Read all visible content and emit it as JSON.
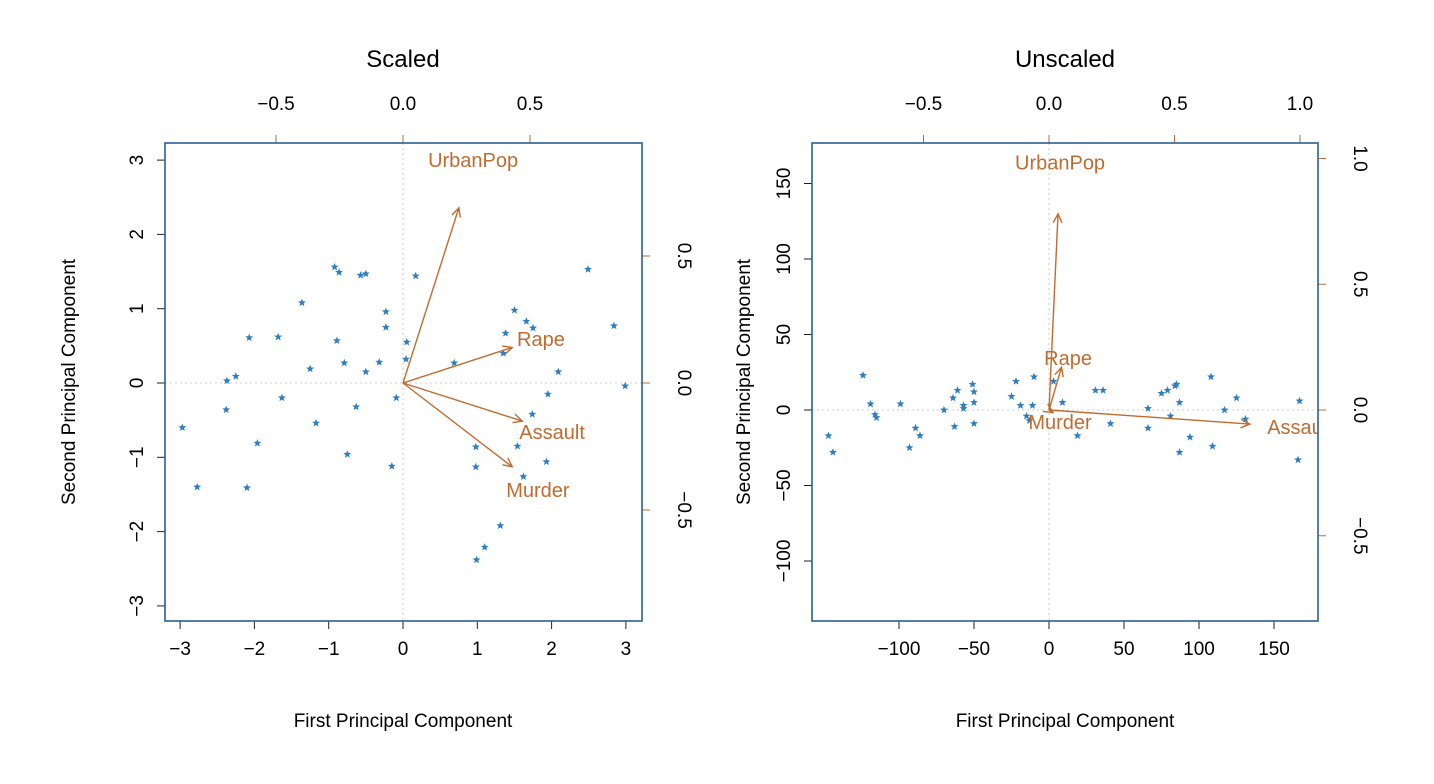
{
  "colors": {
    "points": "#2f7fc0",
    "loadings": "#c06c30",
    "frame": "#2a5f8f",
    "axis": "#222222",
    "refline": "#cccccc"
  },
  "chart_data": [
    {
      "type": "scatter",
      "subtype": "biplot",
      "title": "Scaled",
      "xlabel": "First Principal Component",
      "ylabel": "Second Principal Component",
      "xlim": [
        -3.2,
        3.2
      ],
      "ylim": [
        -3.2,
        3.2
      ],
      "xticks": [
        -3,
        -2,
        -1,
        0,
        1,
        2,
        3
      ],
      "yticks": [
        -3,
        -2,
        -1,
        0,
        1,
        2,
        3
      ],
      "xtick_labels": [
        "−3",
        "−2",
        "−1",
        "0",
        "1",
        "2",
        "3"
      ],
      "ytick_labels": [
        "−3",
        "−2",
        "−1",
        "0",
        "1",
        "2",
        "3"
      ],
      "top_ticks": [
        -0.5,
        0.0,
        0.5
      ],
      "top_tick_labels": [
        "−0.5",
        "0.0",
        "0.5"
      ],
      "right_ticks": [
        -0.5,
        0.0,
        0.5
      ],
      "right_tick_labels": [
        "−0.5",
        "0.0",
        "0.5"
      ],
      "loading_lim": [
        -0.94,
        0.94
      ],
      "marker": "*",
      "points": [
        [
          -2.97,
          -0.6
        ],
        [
          -2.77,
          -1.4
        ],
        [
          -2.38,
          -0.36
        ],
        [
          -2.37,
          0.03
        ],
        [
          -2.25,
          0.09
        ],
        [
          -2.07,
          0.61
        ],
        [
          -2.1,
          -1.41
        ],
        [
          -1.96,
          -0.81
        ],
        [
          -1.68,
          0.62
        ],
        [
          -1.63,
          -0.2
        ],
        [
          -1.36,
          1.08
        ],
        [
          -1.25,
          0.19
        ],
        [
          -1.17,
          -0.54
        ],
        [
          -0.92,
          1.56
        ],
        [
          -0.86,
          1.49
        ],
        [
          -0.89,
          0.57
        ],
        [
          -0.79,
          0.27
        ],
        [
          -0.75,
          -0.96
        ],
        [
          -0.57,
          1.45
        ],
        [
          -0.5,
          1.47
        ],
        [
          -0.5,
          0.15
        ],
        [
          -0.63,
          -0.32
        ],
        [
          -0.32,
          0.28
        ],
        [
          -0.23,
          0.96
        ],
        [
          -0.23,
          0.75
        ],
        [
          -0.15,
          -1.12
        ],
        [
          -0.09,
          -0.2
        ],
        [
          0.04,
          0.32
        ],
        [
          0.05,
          0.55
        ],
        [
          0.17,
          1.44
        ],
        [
          0.69,
          0.27
        ],
        [
          0.98,
          -0.86
        ],
        [
          0.98,
          -1.13
        ],
        [
          0.99,
          -2.38
        ],
        [
          1.1,
          -2.21
        ],
        [
          1.31,
          -1.92
        ],
        [
          1.35,
          0.4
        ],
        [
          1.38,
          0.67
        ],
        [
          1.5,
          0.98
        ],
        [
          1.54,
          -0.85
        ],
        [
          1.62,
          -1.26
        ],
        [
          1.66,
          0.83
        ],
        [
          1.75,
          0.74
        ],
        [
          1.74,
          -0.42
        ],
        [
          1.93,
          -1.06
        ],
        [
          1.95,
          -0.15
        ],
        [
          2.09,
          0.15
        ],
        [
          2.49,
          1.53
        ],
        [
          2.84,
          0.77
        ],
        [
          2.99,
          -0.04
        ]
      ],
      "loadings": [
        {
          "name": "UrbanPop",
          "x": 0.22,
          "y": 0.69,
          "label_x": 0.276,
          "label_y": 0.878
        },
        {
          "name": "Rape",
          "x": 0.43,
          "y": 0.14,
          "label_x": 0.543,
          "label_y": 0.173
        },
        {
          "name": "Assault",
          "x": 0.47,
          "y": -0.15,
          "label_x": 0.587,
          "label_y": -0.193
        },
        {
          "name": "Murder",
          "x": 0.43,
          "y": -0.33,
          "label_x": 0.531,
          "label_y": -0.421
        }
      ]
    },
    {
      "type": "scatter",
      "subtype": "biplot",
      "title": "Unscaled",
      "xlabel": "First Principal Component",
      "ylabel": "Second Principal Component",
      "xlim": [
        -158,
        179
      ],
      "ylim": [
        -139,
        179
      ],
      "xticks": [
        -100,
        -50,
        0,
        50,
        100,
        150
      ],
      "yticks": [
        -100,
        -50,
        0,
        50,
        100,
        150
      ],
      "xtick_labels": [
        "−100",
        "−50",
        "0",
        "50",
        "100",
        "150"
      ],
      "ytick_labels": [
        "−100",
        "−50",
        "0",
        "50",
        "100",
        "150"
      ],
      "top_ticks": [
        -0.5,
        0.0,
        0.5,
        1.0
      ],
      "top_tick_labels": [
        "−0.5",
        "0.0",
        "0.5",
        "1.0"
      ],
      "right_ticks": [
        -0.5,
        0.0,
        0.5,
        1.0
      ],
      "right_tick_labels": [
        "−0.5",
        "0.0",
        "0.5",
        "1.0"
      ],
      "marker": "*",
      "points": [
        [
          -147,
          -17
        ],
        [
          -144,
          -28
        ],
        [
          -124,
          23
        ],
        [
          -119,
          4
        ],
        [
          -116,
          -3
        ],
        [
          -115,
          -5
        ],
        [
          -99,
          4
        ],
        [
          -93,
          -25
        ],
        [
          -89,
          -12
        ],
        [
          -86,
          -17
        ],
        [
          -70,
          0
        ],
        [
          -64,
          8
        ],
        [
          -63,
          -11
        ],
        [
          -61,
          13
        ],
        [
          -57,
          1
        ],
        [
          -57,
          3
        ],
        [
          -50,
          -9
        ],
        [
          -50,
          5
        ],
        [
          -51,
          17
        ],
        [
          -50,
          12
        ],
        [
          -25,
          9
        ],
        [
          -22,
          19
        ],
        [
          -19,
          3
        ],
        [
          -15,
          -4
        ],
        [
          -13,
          -7
        ],
        [
          -11,
          3
        ],
        [
          -10,
          22
        ],
        [
          3,
          19
        ],
        [
          9,
          5
        ],
        [
          19,
          -17
        ],
        [
          31,
          13
        ],
        [
          36,
          13
        ],
        [
          41,
          -9
        ],
        [
          66,
          1
        ],
        [
          66,
          -12
        ],
        [
          79,
          13
        ],
        [
          81,
          -4
        ],
        [
          84,
          16
        ],
        [
          85,
          17
        ],
        [
          87,
          5
        ],
        [
          87,
          -28
        ],
        [
          94,
          -18
        ],
        [
          108,
          22
        ],
        [
          109,
          -24
        ],
        [
          117,
          0
        ],
        [
          125,
          8
        ],
        [
          131,
          -6
        ],
        [
          167,
          6
        ],
        [
          166,
          -33
        ],
        [
          75,
          11
        ]
      ],
      "loadings": [
        {
          "name": "UrbanPop",
          "x": 0.036,
          "y": 0.78,
          "label_x": 0.044,
          "label_y": 0.984
        },
        {
          "name": "Rape",
          "x": 0.05,
          "y": 0.17,
          "label_x": 0.076,
          "label_y": 0.207
        },
        {
          "name": "Murder",
          "x": 0.016,
          "y": -0.01,
          "label_x": 0.044,
          "label_y": -0.048
        },
        {
          "name": "Assault",
          "x": 0.8,
          "y": -0.056,
          "label_x": 1.0,
          "label_y": -0.068
        }
      ]
    }
  ]
}
